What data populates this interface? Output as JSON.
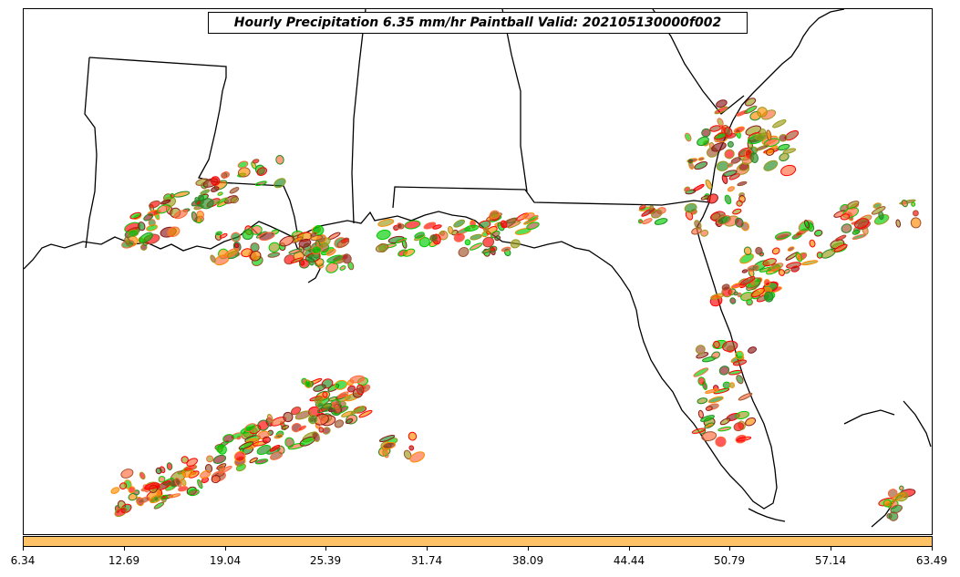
{
  "title": "Hourly Precipitation 6.35 mm/hr Paintball Valid: 202105130000f002",
  "colorbar": {
    "color": "#ffc266",
    "tick_labels": [
      "6.34",
      "12.69",
      "19.04",
      "25.39",
      "31.74",
      "38.09",
      "44.44",
      "50.79",
      "57.14",
      "63.49"
    ]
  },
  "paintball_colors": [
    "#00cc00",
    "#228b22",
    "#9a9a1a",
    "#ff8c00",
    "#ff0000",
    "#8b1a1a",
    "#ff6a3d",
    "#a0522d"
  ]
}
